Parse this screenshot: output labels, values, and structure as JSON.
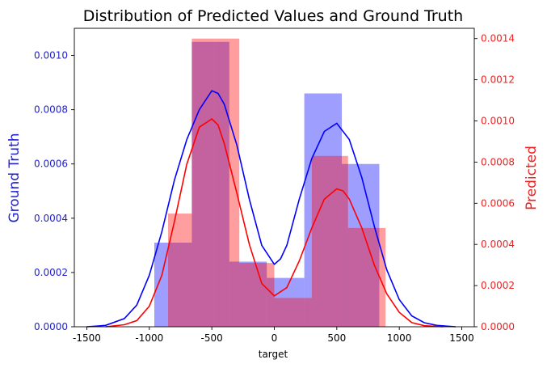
{
  "chart_data": {
    "type": "histogram-kde",
    "title": "Distribution of Predicted Values and Ground Truth",
    "xlabel": "target",
    "xlim": [
      -1600,
      1600
    ],
    "x_ticks": [
      -1500,
      -1000,
      -500,
      0,
      500,
      1000,
      1500
    ],
    "x_tick_labels": [
      "-1500",
      "-1000",
      "-500",
      "0",
      "500",
      "1000",
      "1500"
    ],
    "left_axis": {
      "label": "Ground Truth",
      "color": "#2222cc",
      "ylim": [
        0,
        0.0011
      ],
      "ticks": [
        0,
        0.0002,
        0.0004,
        0.0006,
        0.0008,
        0.001
      ],
      "tick_labels": [
        "0.0000",
        "0.0002",
        "0.0004",
        "0.0006",
        "0.0008",
        "0.0010"
      ]
    },
    "right_axis": {
      "label": "Predicted",
      "color": "#ee2222",
      "ylim": [
        0,
        0.00145
      ],
      "ticks": [
        0,
        0.0002,
        0.0004,
        0.0006,
        0.0008,
        0.001,
        0.0012,
        0.0014
      ],
      "tick_labels": [
        "0.0000",
        "0.0002",
        "0.0004",
        "0.0006",
        "0.0008",
        "0.0010",
        "0.0012",
        "0.0014"
      ]
    },
    "series": [
      {
        "name": "Ground Truth",
        "axis": "left",
        "bar_color": "#0000ff",
        "bar_opacity": 0.38,
        "line_color": "#0000ff",
        "bin_edges": [
          -960,
          -660,
          -360,
          -60,
          240,
          540,
          840
        ],
        "bin_edges_note": "6 bins spanning the range below",
        "bins": [
          {
            "x0": -960,
            "x1": -660,
            "value": 0.00031
          },
          {
            "x0": -660,
            "x1": -360,
            "value": 0.00105
          },
          {
            "x0": -360,
            "x1": -60,
            "value": 0.00024
          },
          {
            "x0": -60,
            "x1": 240,
            "value": 0.00018
          },
          {
            "x0": 240,
            "x1": 540,
            "value": 0.00086
          },
          {
            "x0": 540,
            "x1": 840,
            "value": 0.0006
          }
        ],
        "kde": [
          [
            -1500,
            0.0
          ],
          [
            -1350,
            5e-06
          ],
          [
            -1200,
            3e-05
          ],
          [
            -1100,
            8e-05
          ],
          [
            -1000,
            0.00019
          ],
          [
            -900,
            0.00035
          ],
          [
            -800,
            0.00054
          ],
          [
            -700,
            0.00069
          ],
          [
            -600,
            0.0008
          ],
          [
            -500,
            0.00087
          ],
          [
            -450,
            0.00086
          ],
          [
            -400,
            0.00082
          ],
          [
            -300,
            0.00067
          ],
          [
            -200,
            0.00047
          ],
          [
            -100,
            0.0003
          ],
          [
            0,
            0.00023
          ],
          [
            50,
            0.00025
          ],
          [
            100,
            0.0003
          ],
          [
            200,
            0.00047
          ],
          [
            300,
            0.00062
          ],
          [
            400,
            0.00072
          ],
          [
            500,
            0.00075
          ],
          [
            600,
            0.00069
          ],
          [
            700,
            0.00055
          ],
          [
            800,
            0.00037
          ],
          [
            900,
            0.00021
          ],
          [
            1000,
            0.0001
          ],
          [
            1100,
            4e-05
          ],
          [
            1200,
            1.5e-05
          ],
          [
            1300,
            5e-06
          ],
          [
            1450,
            0.0
          ]
        ]
      },
      {
        "name": "Predicted",
        "axis": "right",
        "bar_color": "#ff0000",
        "bar_opacity": 0.38,
        "line_color": "#ff0000",
        "bins": [
          {
            "x0": -850,
            "x1": -660,
            "value": 0.00055
          },
          {
            "x0": -660,
            "x1": -480,
            "value": 0.0014
          },
          {
            "x0": -480,
            "x1": -280,
            "value": 0.0014
          },
          {
            "x0": -280,
            "x1": 0,
            "value": 0.00031
          },
          {
            "x0": 0,
            "x1": 300,
            "value": 0.00014
          },
          {
            "x0": 300,
            "x1": 590,
            "value": 0.00083
          },
          {
            "x0": 590,
            "x1": 890,
            "value": 0.00048
          }
        ],
        "kde": [
          [
            -1350,
            0.0
          ],
          [
            -1200,
            1e-05
          ],
          [
            -1100,
            3e-05
          ],
          [
            -1000,
            0.0001
          ],
          [
            -900,
            0.00025
          ],
          [
            -800,
            0.00051
          ],
          [
            -700,
            0.00079
          ],
          [
            -600,
            0.00097
          ],
          [
            -500,
            0.00101
          ],
          [
            -450,
            0.00098
          ],
          [
            -400,
            0.00089
          ],
          [
            -300,
            0.00065
          ],
          [
            -200,
            0.0004
          ],
          [
            -100,
            0.00021
          ],
          [
            0,
            0.00015
          ],
          [
            100,
            0.00019
          ],
          [
            200,
            0.00032
          ],
          [
            300,
            0.00048
          ],
          [
            400,
            0.00062
          ],
          [
            500,
            0.00067
          ],
          [
            550,
            0.00066
          ],
          [
            600,
            0.00062
          ],
          [
            700,
            0.00048
          ],
          [
            800,
            0.0003
          ],
          [
            900,
            0.00016
          ],
          [
            1000,
            7e-05
          ],
          [
            1100,
            2e-05
          ],
          [
            1200,
            5e-06
          ],
          [
            1350,
            0.0
          ]
        ]
      }
    ]
  }
}
